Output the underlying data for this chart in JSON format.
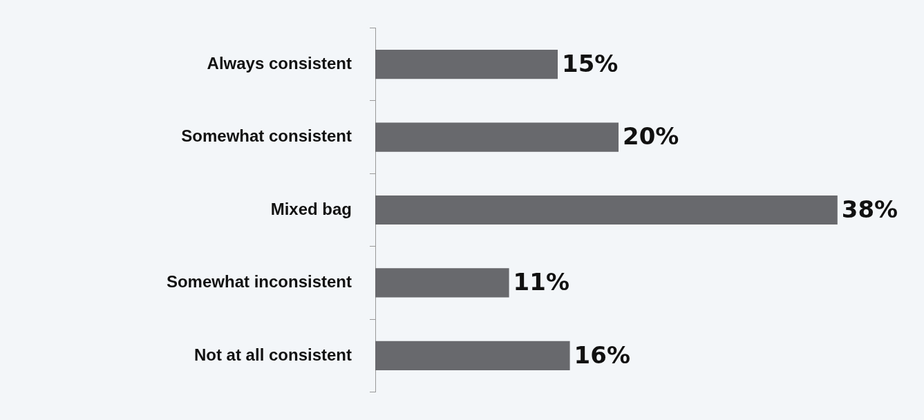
{
  "chart_data": {
    "type": "bar",
    "orientation": "horizontal",
    "categories": [
      "Always consistent",
      "Somewhat consistent",
      "Mixed bag",
      "Somewhat inconsistent",
      "Not at all consistent"
    ],
    "values": [
      15,
      20,
      38,
      11,
      16
    ],
    "value_labels": [
      "15%",
      "20%",
      "38%",
      "11%",
      "16%"
    ],
    "color": "#68696d",
    "grid": false,
    "legend": false
  }
}
